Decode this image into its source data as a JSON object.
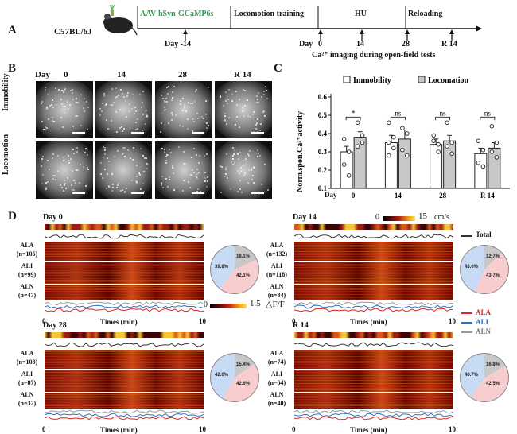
{
  "panelA": {
    "letter": "A",
    "mouse_strain": "C57BL/6J",
    "virus": "AAV-hSyn-GCaMP6s",
    "injection_day": "Day -14",
    "phases": [
      "Locomotion training",
      "HU",
      "Reloading"
    ],
    "timeline_day_label": "Day",
    "ticks": [
      "0",
      "14",
      "28",
      "R 14"
    ],
    "imaging_note": "Ca²⁺ imaging during open-field tests",
    "colors": {
      "virus": "#2aa04a"
    }
  },
  "panelB": {
    "letter": "B",
    "day_label": "Day",
    "columns": [
      "0",
      "14",
      "28",
      "R 14"
    ],
    "rows": [
      "Immobility",
      "Locomotion"
    ]
  },
  "panelC": {
    "letter": "C",
    "ylabel": "Norm.spon.Ca²⁺activity",
    "legend": [
      "Immobility",
      "Locomation"
    ],
    "xlabel_prefix": "Day",
    "significance": [
      "*",
      "ns",
      "ns",
      "ns"
    ]
  },
  "panelD": {
    "letter": "D",
    "color_scale_1_max": "15",
    "color_scale_1_unit": "cm/s",
    "color_scale_1_min": "0",
    "color_scale_2_min": "0",
    "color_scale_2_max": "1.5",
    "color_scale_2_unit": "△F/F",
    "legend": [
      {
        "name": "Total",
        "color": "#333333"
      },
      {
        "name": "ALA",
        "color": "#d42a2a"
      },
      {
        "name": "ALI",
        "color": "#2f6fc4"
      },
      {
        "name": "ALN",
        "color": "#999999"
      }
    ],
    "time_label": "Times (min)",
    "blocks": [
      {
        "title": "Day 0",
        "ala": "(n=105)",
        "ali": "(n=99)",
        "aln": "(n=47)",
        "pie": {
          "gray": "18.1%",
          "blue": "39.8%",
          "pink": "42.1%"
        },
        "x0": "0",
        "x1": "10"
      },
      {
        "title": "Day 14",
        "ala": "(n=132)",
        "ali": "(n=118)",
        "aln": "(n=34)",
        "pie": {
          "gray": "12.7%",
          "blue": "43.6%",
          "pink": "43.7%"
        },
        "x0": "0",
        "x1": "10"
      },
      {
        "title": "Day 28",
        "ala": "(n=103)",
        "ali": "(n=87)",
        "aln": "(n=32)",
        "pie": {
          "gray": "15.4%",
          "blue": "42.0%",
          "pink": "42.6%"
        },
        "x0": "0",
        "x1": "10"
      },
      {
        "title": "R 14",
        "ala": "(n=74)",
        "ali": "(n=64)",
        "aln": "(n=40)",
        "pie": {
          "gray": "16.8%",
          "blue": "40.7%",
          "pink": "42.5%"
        },
        "x0": "0",
        "x1": "10"
      }
    ],
    "row_labels": [
      "ALA",
      "ALI",
      "ALN"
    ]
  },
  "chart_data": {
    "type": "bar",
    "categories": [
      "0",
      "14",
      "28",
      "R 14"
    ],
    "series": [
      {
        "name": "Immobility",
        "values": [
          0.3,
          0.35,
          0.34,
          0.29
        ]
      },
      {
        "name": "Locomation",
        "values": [
          0.38,
          0.37,
          0.36,
          0.32
        ]
      }
    ],
    "errors": [
      [
        0.03,
        0.04,
        0.03,
        0.03
      ],
      [
        0.03,
        0.05,
        0.03,
        0.03
      ]
    ],
    "points": [
      [
        [
          0.37,
          0.3,
          0.23,
          0.17
        ],
        [
          0.46,
          0.38,
          0.35,
          0.32,
          0.28
        ],
        [
          0.39,
          0.34,
          0.36,
          0.3
        ],
        [
          0.36,
          0.31,
          0.24,
          0.22
        ]
      ],
      [
        [
          0.46,
          0.39,
          0.33,
          0.35
        ],
        [
          0.43,
          0.4,
          0.31,
          0.28
        ],
        [
          0.46,
          0.35,
          0.33,
          0.29
        ],
        [
          0.44,
          0.35,
          0.3,
          0.27
        ]
      ]
    ],
    "yticks": [
      "0.1",
      "0.2",
      "0.3",
      "0.4",
      "0.5",
      "0.6"
    ],
    "ylim": [
      0.1,
      0.6
    ],
    "ylabel": "Norm.spon.Ca²⁺activity",
    "xlabel": "Day",
    "legend_position": "top"
  }
}
